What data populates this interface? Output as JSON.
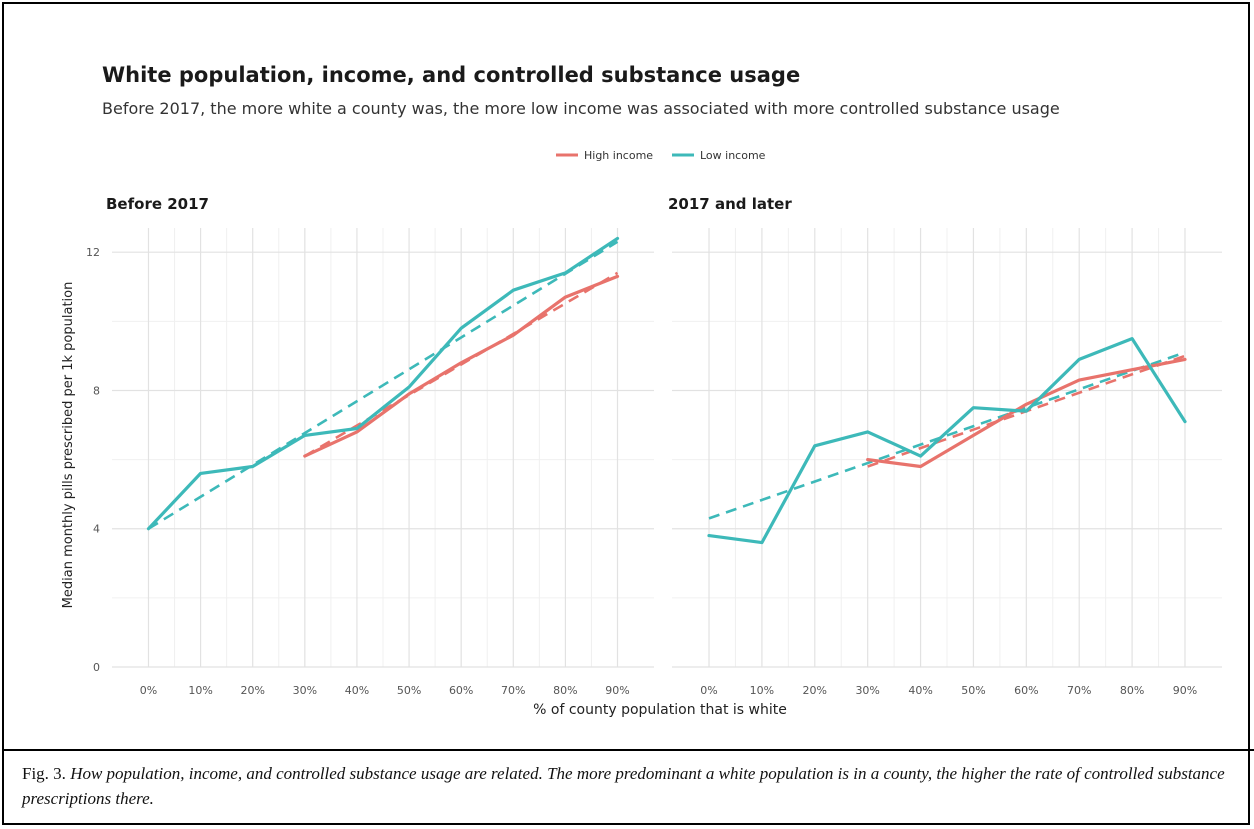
{
  "chart_data": {
    "type": "line",
    "title": "White population, income, and controlled substance usage",
    "subtitle": "Before 2017, the more white a county was, the more low income was associated with more controlled substance usage",
    "xlabel": "% of county population that is white",
    "ylabel": "Median monthly pills prescribed per 1k population",
    "x_ticks": [
      "0%",
      "10%",
      "20%",
      "30%",
      "40%",
      "50%",
      "60%",
      "70%",
      "80%",
      "90%"
    ],
    "y_ticks": [
      "0",
      "4",
      "8",
      "12"
    ],
    "ylim": [
      0,
      12.7
    ],
    "xlim": [
      -7,
      97
    ],
    "grid": true,
    "legend_position": "top-center",
    "legend": [
      {
        "name": "High income",
        "color": "#E8736C"
      },
      {
        "name": "Low income",
        "color": "#3DB9B9"
      }
    ],
    "panels": [
      {
        "title": "Before 2017",
        "series": [
          {
            "name": "High income",
            "color": "#E8736C",
            "x": [
              30,
              40,
              50,
              60,
              70,
              80,
              90
            ],
            "values": [
              6.1,
              6.8,
              7.9,
              8.8,
              9.6,
              10.7,
              11.3
            ]
          },
          {
            "name": "Low income",
            "color": "#3DB9B9",
            "x": [
              0,
              10,
              20,
              30,
              40,
              50,
              60,
              70,
              80,
              90
            ],
            "values": [
              4.0,
              5.6,
              5.8,
              6.7,
              6.9,
              8.1,
              9.8,
              10.9,
              11.4,
              12.4
            ]
          }
        ],
        "trends": [
          {
            "name": "High income",
            "color": "#E8736C",
            "x": [
              30,
              90
            ],
            "values": [
              6.1,
              11.4
            ]
          },
          {
            "name": "Low income",
            "color": "#3DB9B9",
            "x": [
              0,
              90
            ],
            "values": [
              4.0,
              12.3
            ]
          }
        ]
      },
      {
        "title": "2017 and later",
        "series": [
          {
            "name": "High income",
            "color": "#E8736C",
            "x": [
              30,
              40,
              50,
              60,
              70,
              80,
              90
            ],
            "values": [
              6.0,
              5.8,
              6.7,
              7.6,
              8.3,
              8.6,
              8.9
            ]
          },
          {
            "name": "Low income",
            "color": "#3DB9B9",
            "x": [
              0,
              10,
              20,
              30,
              40,
              50,
              60,
              70,
              80,
              90
            ],
            "values": [
              3.8,
              3.6,
              6.4,
              6.8,
              6.1,
              7.5,
              7.4,
              8.9,
              9.5,
              7.1
            ]
          }
        ],
        "trends": [
          {
            "name": "High income",
            "color": "#E8736C",
            "x": [
              30,
              90
            ],
            "values": [
              5.8,
              9.0
            ]
          },
          {
            "name": "Low income",
            "color": "#3DB9B9",
            "x": [
              0,
              90
            ],
            "values": [
              4.3,
              9.1
            ]
          }
        ]
      }
    ]
  },
  "caption": {
    "label": "Fig. 3.",
    "text": "How population, income, and controlled substance usage are related. The more predominant a white population is in a county, the higher the rate of controlled substance prescriptions there."
  }
}
